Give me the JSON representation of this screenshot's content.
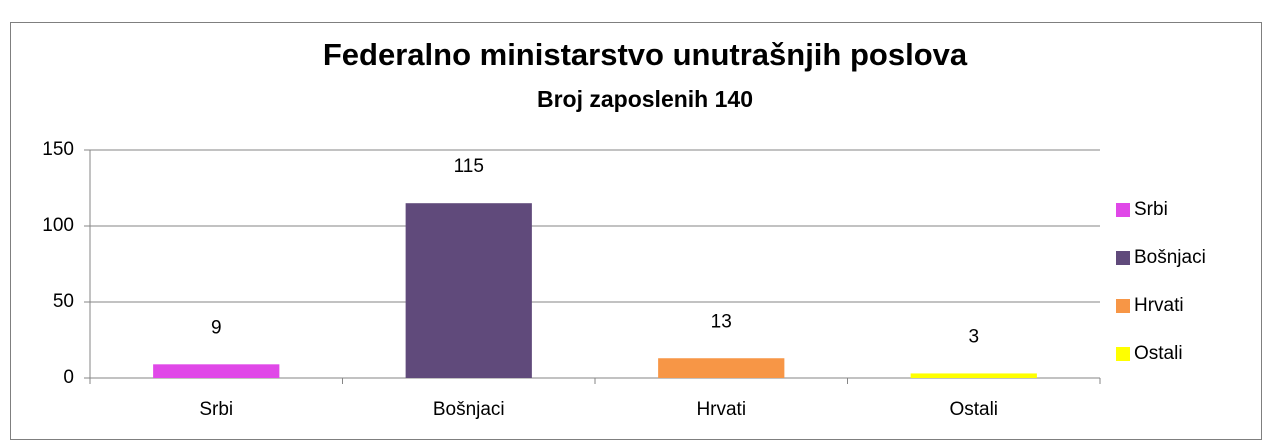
{
  "chart_data": {
    "type": "bar",
    "title": "Federalno ministarstvo unutrašnjih poslova",
    "subtitle": "Broj zaposlenih 140",
    "categories": [
      "Srbi",
      "Bošnjaci",
      "Hrvati",
      "Ostali"
    ],
    "values": [
      9,
      115,
      13,
      3
    ],
    "colors": [
      "#e048e8",
      "#604a7b",
      "#f79646",
      "#ffff00"
    ],
    "ylim": [
      0,
      150
    ],
    "yticks": [
      0,
      50,
      100,
      150
    ],
    "grid": true,
    "legend": "right"
  }
}
